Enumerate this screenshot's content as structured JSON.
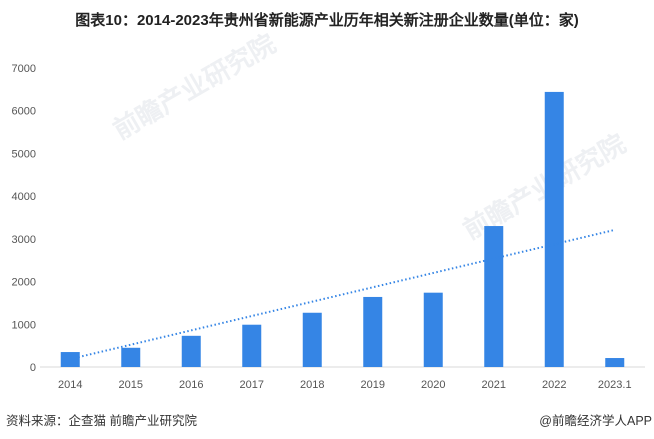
{
  "title": "图表10：2014-2023年贵州省新能源产业历年相关新注册企业数量(单位：家)",
  "source": "资料来源：企查猫 前瞻产业研究院",
  "credit": "@前瞻经济学人APP",
  "watermark": "前瞻产业研究院",
  "colors": {
    "bar": "#3585e5",
    "trend": "#3585e5"
  },
  "chart_data": {
    "type": "bar",
    "title": "图表10：2014-2023年贵州省新能源产业历年相关新注册企业数量(单位：家)",
    "xlabel": "",
    "ylabel": "",
    "categories": [
      "2014",
      "2015",
      "2016",
      "2017",
      "2018",
      "2019",
      "2020",
      "2021",
      "2022",
      "2023.1"
    ],
    "values": [
      350,
      450,
      730,
      990,
      1270,
      1640,
      1740,
      3300,
      6440,
      210
    ],
    "ylim": [
      0,
      7000
    ],
    "yticks": [
      0,
      1000,
      2000,
      3000,
      4000,
      5000,
      6000,
      7000
    ],
    "trendline": {
      "type": "linear",
      "start": 230,
      "end": 3210,
      "style": "dotted"
    },
    "grid": false,
    "legend": "none"
  }
}
